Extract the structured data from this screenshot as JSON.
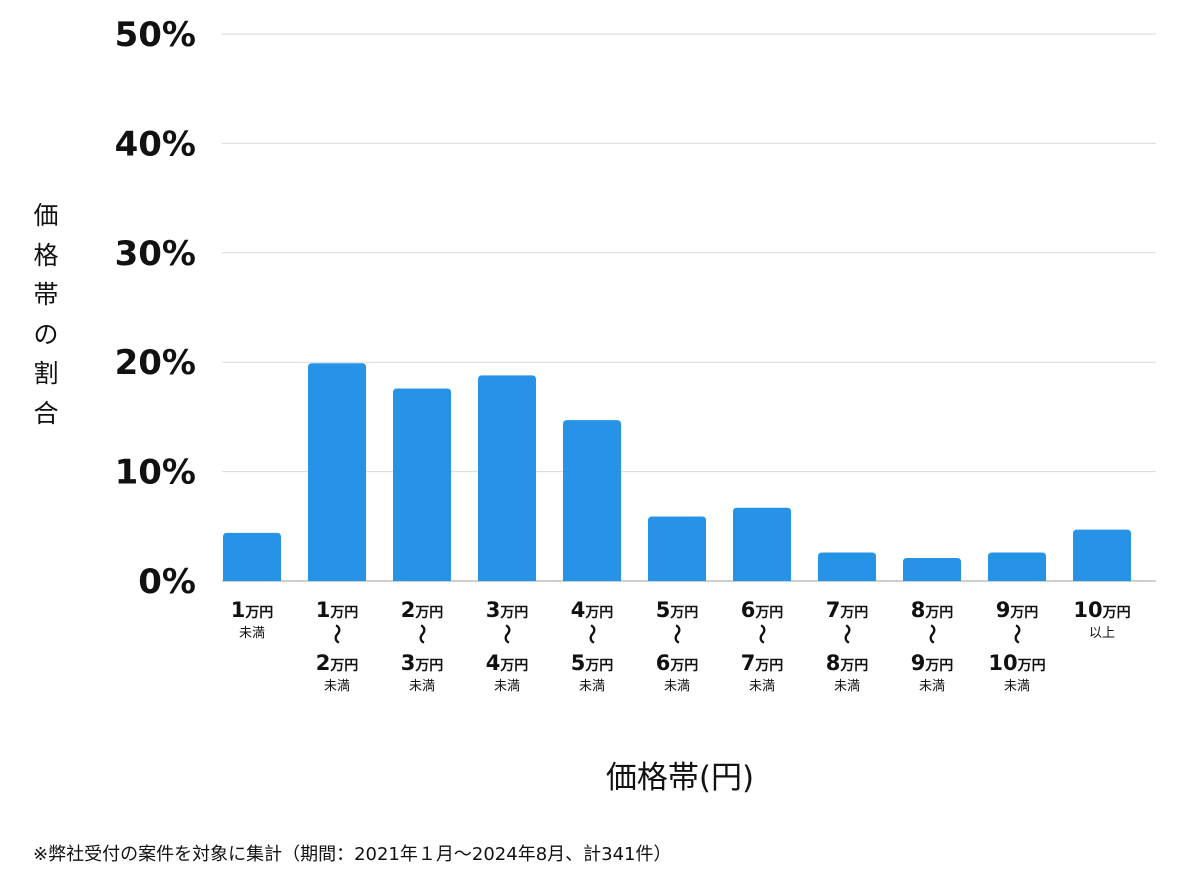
{
  "chart_data": {
    "type": "bar",
    "categories": [
      {
        "line1_num": "1",
        "line1_unit": "万円",
        "line1_note": "未満",
        "line2_num": "",
        "line2_unit": "",
        "line2_note": ""
      },
      {
        "line1_num": "1",
        "line1_unit": "万円",
        "line1_note": "",
        "line2_num": "2",
        "line2_unit": "万円",
        "line2_note": "未満"
      },
      {
        "line1_num": "2",
        "line1_unit": "万円",
        "line1_note": "",
        "line2_num": "3",
        "line2_unit": "万円",
        "line2_note": "未満"
      },
      {
        "line1_num": "3",
        "line1_unit": "万円",
        "line1_note": "",
        "line2_num": "4",
        "line2_unit": "万円",
        "line2_note": "未満"
      },
      {
        "line1_num": "4",
        "line1_unit": "万円",
        "line1_note": "",
        "line2_num": "5",
        "line2_unit": "万円",
        "line2_note": "未満"
      },
      {
        "line1_num": "5",
        "line1_unit": "万円",
        "line1_note": "",
        "line2_num": "6",
        "line2_unit": "万円",
        "line2_note": "未満"
      },
      {
        "line1_num": "6",
        "line1_unit": "万円",
        "line1_note": "",
        "line2_num": "7",
        "line2_unit": "万円",
        "line2_note": "未満"
      },
      {
        "line1_num": "7",
        "line1_unit": "万円",
        "line1_note": "",
        "line2_num": "8",
        "line2_unit": "万円",
        "line2_note": "未満"
      },
      {
        "line1_num": "8",
        "line1_unit": "万円",
        "line1_note": "",
        "line2_num": "9",
        "line2_unit": "万円",
        "line2_note": "未満"
      },
      {
        "line1_num": "9",
        "line1_unit": "万円",
        "line1_note": "",
        "line2_num": "10",
        "line2_unit": "万円",
        "line2_note": "未満"
      },
      {
        "line1_num": "10",
        "line1_unit": "万円",
        "line1_note": "以上",
        "line2_num": "",
        "line2_unit": "",
        "line2_note": ""
      }
    ],
    "range_separator": "〜",
    "values": [
      4.4,
      19.9,
      17.6,
      18.8,
      14.7,
      5.9,
      6.7,
      2.6,
      2.1,
      2.6,
      4.7
    ],
    "yticks": [
      "0%",
      "10%",
      "20%",
      "30%",
      "40%",
      "50%"
    ],
    "ylim": [
      0,
      50
    ],
    "grid": true,
    "xlabel": "価格帯(円)",
    "ylabel": "価格帯の割合",
    "bar_color": "#2793e6",
    "footnote": "※弊社受付の案件を対象に集計（期間：2021年１月〜2024年8月、計341件）"
  }
}
